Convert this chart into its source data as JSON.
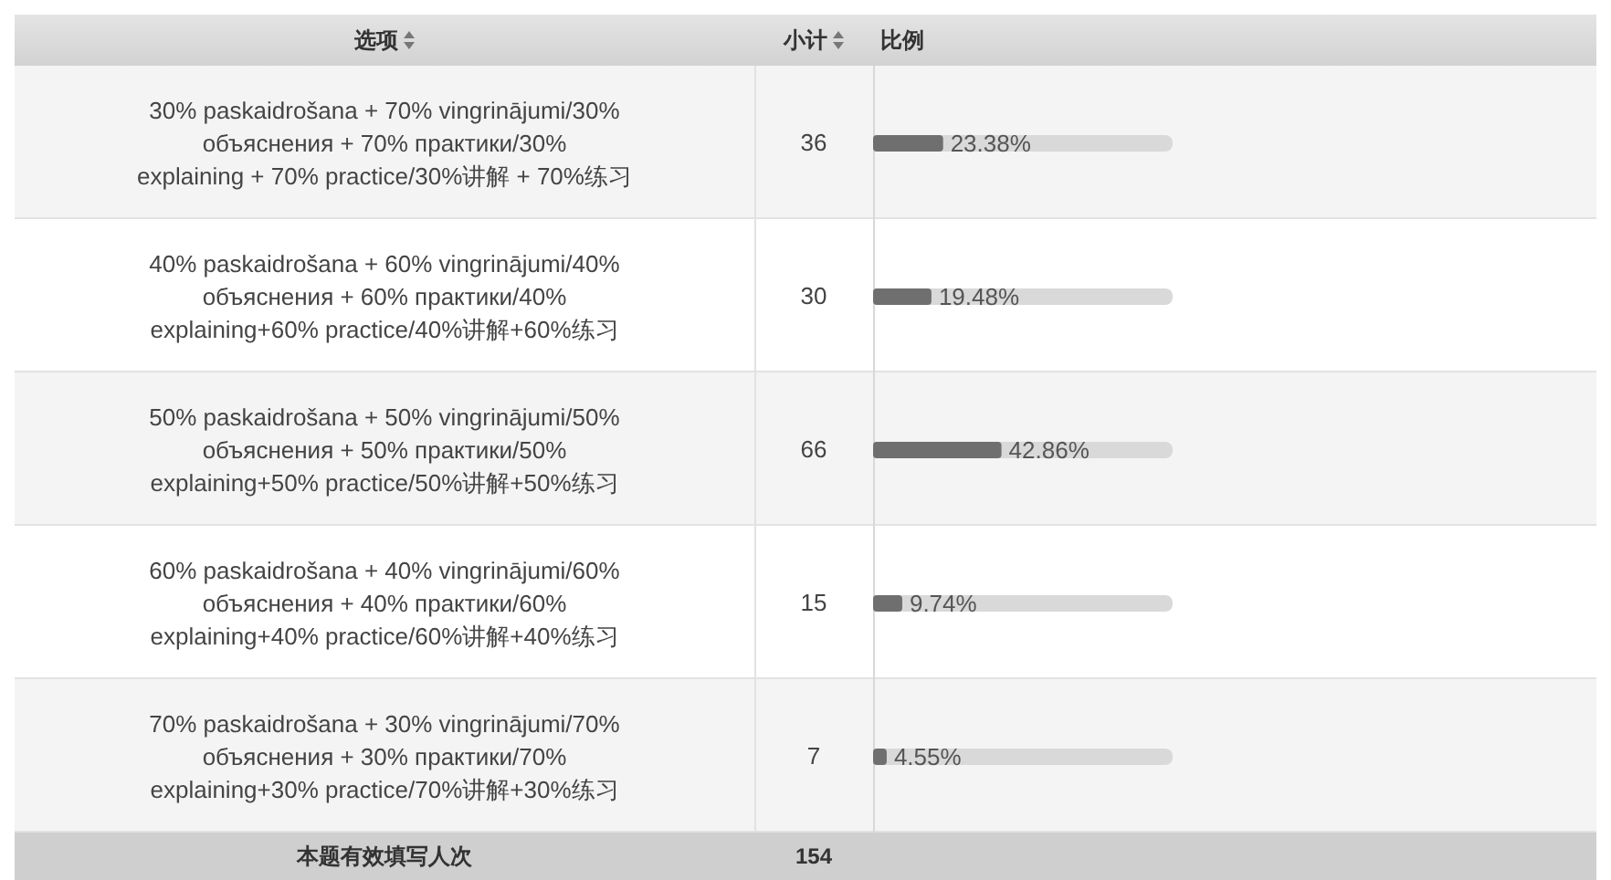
{
  "chart_data": {
    "type": "bar",
    "orientation": "horizontal",
    "ylabel": "选项",
    "xlabel": "比例",
    "categories": [
      "30% paskaidrošana + 70% vingrinājumi/30% объяснения + 70% практики/30% explaining + 70% practice/30%讲解 + 70%练习",
      "40% paskaidrošana + 60% vingrinājumi/40% объяснения + 60% практики/40% explaining+60% practice/40%讲解+60%练习",
      "50% paskaidrošana + 50% vingrinājumi/50% объяснения + 50% практики/50% explaining+50% practice/50%讲解+50%练习",
      "60% paskaidrošana + 40% vingrinājumi/60% объяснения + 40% практики/60% explaining+40% practice/60%讲解+40%练习",
      "70% paskaidrošana + 30% vingrinājumi/70% объяснения + 30% практики/70% explaining+30% practice/70%讲解+30%练习"
    ],
    "values": [
      23.38,
      19.48,
      42.86,
      9.74,
      4.55
    ],
    "value_labels": [
      "23.38%",
      "19.48%",
      "42.86%",
      "9.74%",
      "4.55%"
    ],
    "color": "#6f6f6f",
    "xlim": [
      0,
      100
    ],
    "tick_labels": "y",
    "annotations": [
      "小计",
      "36",
      "30",
      "66",
      "15",
      "7",
      "本题有效填写人次",
      "154"
    ]
  }
}
